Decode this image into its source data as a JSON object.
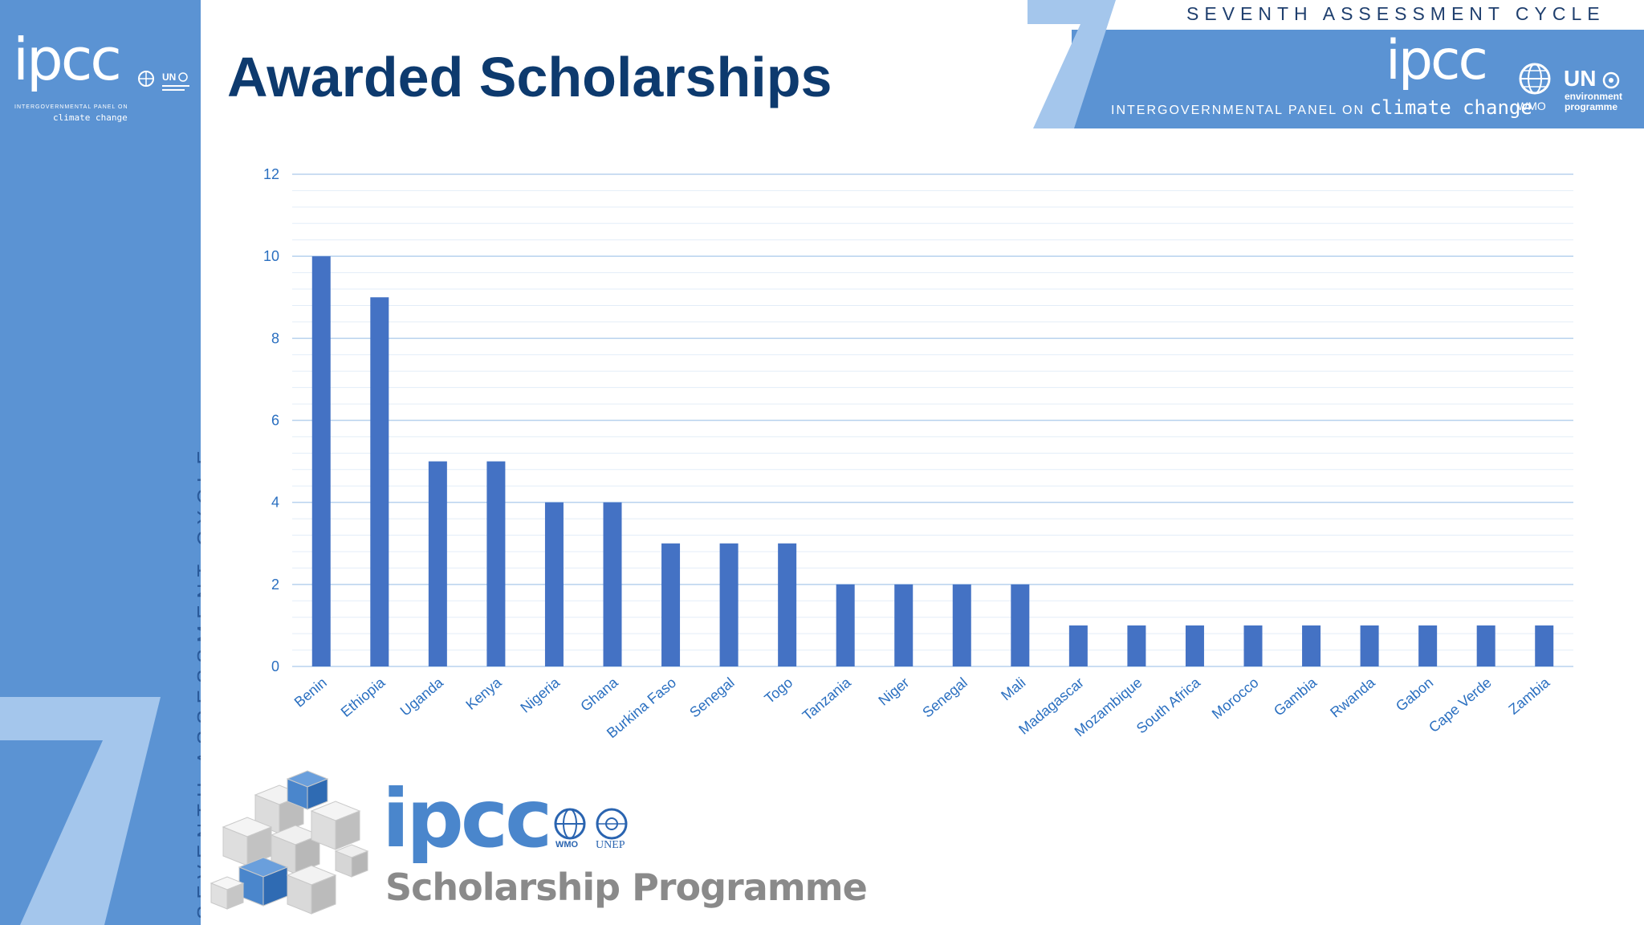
{
  "header": {
    "title": "Awarded Scholarships",
    "cycle_label": "SEVENTH ASSESSMENT CYCLE",
    "ipcc_logo_text": "ipcc",
    "ipcc_tagline_prefix": "INTERGOVERNMENTAL PANEL ON",
    "ipcc_tagline_suffix": "climate change",
    "wmo_label": "WMO",
    "un_label": "UN",
    "unep_label": "environment programme"
  },
  "sidebar": {
    "ipcc_logo_text": "ipcc",
    "ipcc_sub": "INTERGOVERNMENTAL PANEL ON",
    "ipcc_sub2": "climate change",
    "vertical_label": "SEVENTH ASSESSMENT CYCLE"
  },
  "footer": {
    "logo_text": "ipcc",
    "programme": "Scholarship Programme",
    "wmo_label": "WMO",
    "unep_label": "UNEP"
  },
  "colors": {
    "bar": "#4472c4",
    "sidebar": "#5b93d3",
    "title": "#0d3a6e",
    "light_blue": "#9fc3ea",
    "axis_text": "#2a6fc0"
  },
  "chart_data": {
    "type": "bar",
    "categories": [
      "Benin",
      "Ethiopia",
      "Uganda",
      "Kenya",
      "Nigeria",
      "Ghana",
      "Burkina Faso",
      "Senegal",
      "Togo",
      "Tanzania",
      "Niger",
      "Senegal",
      "Mali",
      "Madagascar",
      "Mozambique",
      "South Africa",
      "Morocco",
      "Gambia",
      "Rwanda",
      "Gabon",
      "Cape Verde",
      "Zambia"
    ],
    "values": [
      10,
      9,
      5,
      5,
      4,
      4,
      3,
      3,
      3,
      2,
      2,
      2,
      2,
      1,
      1,
      1,
      1,
      1,
      1,
      1,
      1,
      1
    ],
    "yticks": [
      0,
      2,
      4,
      6,
      8,
      10,
      12
    ],
    "ylim": [
      0,
      12
    ],
    "grid": "major and minor horizontal",
    "legend": "none"
  }
}
